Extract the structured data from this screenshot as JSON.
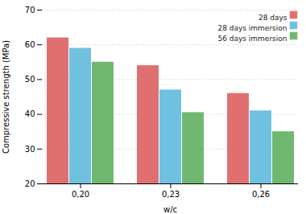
{
  "chart_data": {
    "type": "bar",
    "categories": [
      "0,20",
      "0,23",
      "0,26"
    ],
    "series": [
      {
        "name": "28 days",
        "color": "#e07070",
        "values": [
          62,
          54,
          46
        ]
      },
      {
        "name": "28 days immersion",
        "color": "#70c0e0",
        "values": [
          59,
          47,
          41
        ]
      },
      {
        "name": "56 days immersion",
        "color": "#70b870",
        "values": [
          55,
          40.5,
          35
        ]
      }
    ],
    "xlabel": "w/c",
    "ylabel": "Compressive strength (MPa)",
    "ylim": [
      20,
      70
    ],
    "yticks": [
      20,
      30,
      40,
      50,
      60,
      70
    ],
    "grid": true,
    "legend": "upper right"
  }
}
